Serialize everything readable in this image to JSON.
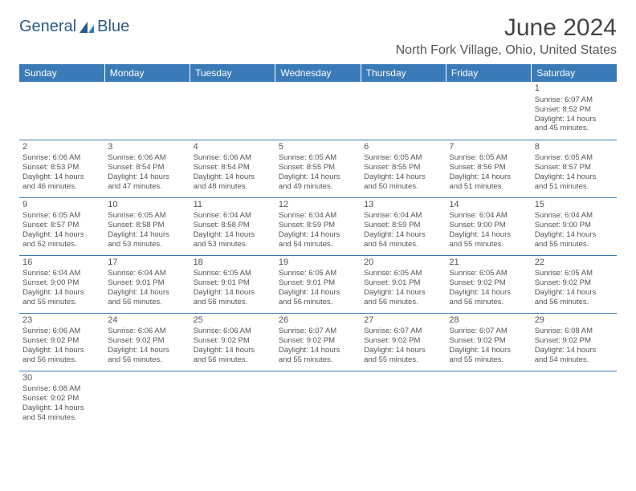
{
  "logo": {
    "text_general": "General",
    "text_blue": "Blue"
  },
  "header": {
    "month_title": "June 2024",
    "location": "North Fork Village, Ohio, United States"
  },
  "weekdays": [
    "Sunday",
    "Monday",
    "Tuesday",
    "Wednesday",
    "Thursday",
    "Friday",
    "Saturday"
  ],
  "colors": {
    "header_bg": "#3a7ab8",
    "header_text": "#ffffff",
    "grid_line": "#3a7ab8",
    "text": "#555555",
    "title": "#444444"
  },
  "weeks": [
    [
      null,
      null,
      null,
      null,
      null,
      null,
      {
        "n": "1",
        "sr": "Sunrise: 6:07 AM",
        "ss": "Sunset: 8:52 PM",
        "d1": "Daylight: 14 hours",
        "d2": "and 45 minutes."
      }
    ],
    [
      {
        "n": "2",
        "sr": "Sunrise: 6:06 AM",
        "ss": "Sunset: 8:53 PM",
        "d1": "Daylight: 14 hours",
        "d2": "and 46 minutes."
      },
      {
        "n": "3",
        "sr": "Sunrise: 6:06 AM",
        "ss": "Sunset: 8:54 PM",
        "d1": "Daylight: 14 hours",
        "d2": "and 47 minutes."
      },
      {
        "n": "4",
        "sr": "Sunrise: 6:06 AM",
        "ss": "Sunset: 8:54 PM",
        "d1": "Daylight: 14 hours",
        "d2": "and 48 minutes."
      },
      {
        "n": "5",
        "sr": "Sunrise: 6:05 AM",
        "ss": "Sunset: 8:55 PM",
        "d1": "Daylight: 14 hours",
        "d2": "and 49 minutes."
      },
      {
        "n": "6",
        "sr": "Sunrise: 6:05 AM",
        "ss": "Sunset: 8:55 PM",
        "d1": "Daylight: 14 hours",
        "d2": "and 50 minutes."
      },
      {
        "n": "7",
        "sr": "Sunrise: 6:05 AM",
        "ss": "Sunset: 8:56 PM",
        "d1": "Daylight: 14 hours",
        "d2": "and 51 minutes."
      },
      {
        "n": "8",
        "sr": "Sunrise: 6:05 AM",
        "ss": "Sunset: 8:57 PM",
        "d1": "Daylight: 14 hours",
        "d2": "and 51 minutes."
      }
    ],
    [
      {
        "n": "9",
        "sr": "Sunrise: 6:05 AM",
        "ss": "Sunset: 8:57 PM",
        "d1": "Daylight: 14 hours",
        "d2": "and 52 minutes."
      },
      {
        "n": "10",
        "sr": "Sunrise: 6:05 AM",
        "ss": "Sunset: 8:58 PM",
        "d1": "Daylight: 14 hours",
        "d2": "and 53 minutes."
      },
      {
        "n": "11",
        "sr": "Sunrise: 6:04 AM",
        "ss": "Sunset: 8:58 PM",
        "d1": "Daylight: 14 hours",
        "d2": "and 53 minutes."
      },
      {
        "n": "12",
        "sr": "Sunrise: 6:04 AM",
        "ss": "Sunset: 8:59 PM",
        "d1": "Daylight: 14 hours",
        "d2": "and 54 minutes."
      },
      {
        "n": "13",
        "sr": "Sunrise: 6:04 AM",
        "ss": "Sunset: 8:59 PM",
        "d1": "Daylight: 14 hours",
        "d2": "and 54 minutes."
      },
      {
        "n": "14",
        "sr": "Sunrise: 6:04 AM",
        "ss": "Sunset: 9:00 PM",
        "d1": "Daylight: 14 hours",
        "d2": "and 55 minutes."
      },
      {
        "n": "15",
        "sr": "Sunrise: 6:04 AM",
        "ss": "Sunset: 9:00 PM",
        "d1": "Daylight: 14 hours",
        "d2": "and 55 minutes."
      }
    ],
    [
      {
        "n": "16",
        "sr": "Sunrise: 6:04 AM",
        "ss": "Sunset: 9:00 PM",
        "d1": "Daylight: 14 hours",
        "d2": "and 55 minutes."
      },
      {
        "n": "17",
        "sr": "Sunrise: 6:04 AM",
        "ss": "Sunset: 9:01 PM",
        "d1": "Daylight: 14 hours",
        "d2": "and 56 minutes."
      },
      {
        "n": "18",
        "sr": "Sunrise: 6:05 AM",
        "ss": "Sunset: 9:01 PM",
        "d1": "Daylight: 14 hours",
        "d2": "and 56 minutes."
      },
      {
        "n": "19",
        "sr": "Sunrise: 6:05 AM",
        "ss": "Sunset: 9:01 PM",
        "d1": "Daylight: 14 hours",
        "d2": "and 56 minutes."
      },
      {
        "n": "20",
        "sr": "Sunrise: 6:05 AM",
        "ss": "Sunset: 9:01 PM",
        "d1": "Daylight: 14 hours",
        "d2": "and 56 minutes."
      },
      {
        "n": "21",
        "sr": "Sunrise: 6:05 AM",
        "ss": "Sunset: 9:02 PM",
        "d1": "Daylight: 14 hours",
        "d2": "and 56 minutes."
      },
      {
        "n": "22",
        "sr": "Sunrise: 6:05 AM",
        "ss": "Sunset: 9:02 PM",
        "d1": "Daylight: 14 hours",
        "d2": "and 56 minutes."
      }
    ],
    [
      {
        "n": "23",
        "sr": "Sunrise: 6:06 AM",
        "ss": "Sunset: 9:02 PM",
        "d1": "Daylight: 14 hours",
        "d2": "and 56 minutes."
      },
      {
        "n": "24",
        "sr": "Sunrise: 6:06 AM",
        "ss": "Sunset: 9:02 PM",
        "d1": "Daylight: 14 hours",
        "d2": "and 56 minutes."
      },
      {
        "n": "25",
        "sr": "Sunrise: 6:06 AM",
        "ss": "Sunset: 9:02 PM",
        "d1": "Daylight: 14 hours",
        "d2": "and 56 minutes."
      },
      {
        "n": "26",
        "sr": "Sunrise: 6:07 AM",
        "ss": "Sunset: 9:02 PM",
        "d1": "Daylight: 14 hours",
        "d2": "and 55 minutes."
      },
      {
        "n": "27",
        "sr": "Sunrise: 6:07 AM",
        "ss": "Sunset: 9:02 PM",
        "d1": "Daylight: 14 hours",
        "d2": "and 55 minutes."
      },
      {
        "n": "28",
        "sr": "Sunrise: 6:07 AM",
        "ss": "Sunset: 9:02 PM",
        "d1": "Daylight: 14 hours",
        "d2": "and 55 minutes."
      },
      {
        "n": "29",
        "sr": "Sunrise: 6:08 AM",
        "ss": "Sunset: 9:02 PM",
        "d1": "Daylight: 14 hours",
        "d2": "and 54 minutes."
      }
    ],
    [
      {
        "n": "30",
        "sr": "Sunrise: 6:08 AM",
        "ss": "Sunset: 9:02 PM",
        "d1": "Daylight: 14 hours",
        "d2": "and 54 minutes."
      },
      null,
      null,
      null,
      null,
      null,
      null
    ]
  ]
}
